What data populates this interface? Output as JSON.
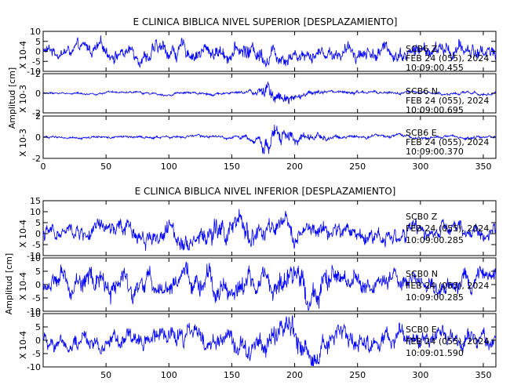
{
  "chart_data": [
    {
      "type": "line",
      "title": "E CLINICA BIBLICA NIVEL SUPERIOR [DESPLAZAMIENTO]",
      "ylabel": "Amplitud [cm]",
      "xlim": [
        0,
        360
      ],
      "x_ticks": [
        0,
        50,
        100,
        150,
        200,
        250,
        300,
        350
      ],
      "line_color": "#0000ff",
      "channels": [
        {
          "name": "SCB6 Z",
          "date": "FEB 24 (055), 2024",
          "time": "10:09:00.455",
          "scale": "X 10-4",
          "ylim": [
            -10,
            10
          ],
          "y_ticks": [
            -10,
            -5,
            0,
            5,
            10
          ],
          "envelope": [
            [
              0,
              4
            ],
            [
              40,
              5
            ],
            [
              100,
              6
            ],
            [
              150,
              6
            ],
            [
              170,
              8
            ],
            [
              180,
              7
            ],
            [
              220,
              5
            ],
            [
              300,
              6
            ],
            [
              360,
              6
            ]
          ]
        },
        {
          "name": "SCB6 N",
          "date": "FEB 24 (055), 2024",
          "time": "10:09:00.695",
          "scale": "X 10-3",
          "ylim": [
            -2,
            2
          ],
          "y_ticks": [
            -2,
            0,
            2
          ],
          "envelope": [
            [
              0,
              0.15
            ],
            [
              150,
              0.2
            ],
            [
              170,
              0.4
            ],
            [
              178,
              1.6
            ],
            [
              185,
              1.3
            ],
            [
              200,
              0.6
            ],
            [
              230,
              0.25
            ],
            [
              360,
              0.2
            ]
          ]
        },
        {
          "name": "SCB6 E",
          "date": "FEB 24 (055), 2024",
          "time": "10:09:00.370",
          "scale": "X 10-3",
          "ylim": [
            -2,
            2
          ],
          "y_ticks": [
            -2,
            0,
            2
          ],
          "envelope": [
            [
              0,
              0.15
            ],
            [
              150,
              0.2
            ],
            [
              170,
              0.5
            ],
            [
              178,
              1.8
            ],
            [
              188,
              1.2
            ],
            [
              210,
              0.5
            ],
            [
              240,
              0.25
            ],
            [
              360,
              0.2
            ]
          ]
        }
      ]
    },
    {
      "type": "line",
      "title": "E CLINICA BIBLICA NIVEL INFERIOR [DESPLAZAMIENTO]",
      "ylabel": "Amplitud [cm]",
      "xlim": [
        0,
        360
      ],
      "x_ticks": [
        50,
        100,
        150,
        200,
        250,
        300,
        350
      ],
      "line_color": "#0000ff",
      "channels": [
        {
          "name": "SCB0 Z",
          "date": "FEB 24 (055), 2024",
          "time": "10:09:00.285",
          "scale": "X 10-4",
          "ylim": [
            -10,
            15
          ],
          "y_ticks": [
            -10,
            -5,
            0,
            5,
            10,
            15
          ],
          "envelope": [
            [
              0,
              5
            ],
            [
              60,
              6
            ],
            [
              130,
              8
            ],
            [
              160,
              9
            ],
            [
              200,
              6
            ],
            [
              300,
              6
            ],
            [
              360,
              5
            ]
          ]
        },
        {
          "name": "SCB0 N",
          "date": "FEB 24 (055), 2024",
          "time": "10:09:00.285",
          "scale": "X 10-4",
          "ylim": [
            -10,
            10
          ],
          "y_ticks": [
            -10,
            -5,
            0,
            5,
            10
          ],
          "envelope": [
            [
              0,
              4
            ],
            [
              30,
              8
            ],
            [
              100,
              5
            ],
            [
              140,
              7
            ],
            [
              180,
              7
            ],
            [
              210,
              8
            ],
            [
              260,
              5
            ],
            [
              360,
              5
            ]
          ]
        },
        {
          "name": "SCB0 E",
          "date": "FEB 24 (055), 2024",
          "time": "10:09:01.590",
          "scale": "X 10-4",
          "ylim": [
            -10,
            10
          ],
          "y_ticks": [
            -10,
            -5,
            0,
            5,
            10
          ],
          "envelope": [
            [
              0,
              4
            ],
            [
              60,
              5
            ],
            [
              140,
              6
            ],
            [
              200,
              8
            ],
            [
              230,
              6
            ],
            [
              300,
              5
            ],
            [
              360,
              5
            ]
          ]
        }
      ]
    }
  ]
}
